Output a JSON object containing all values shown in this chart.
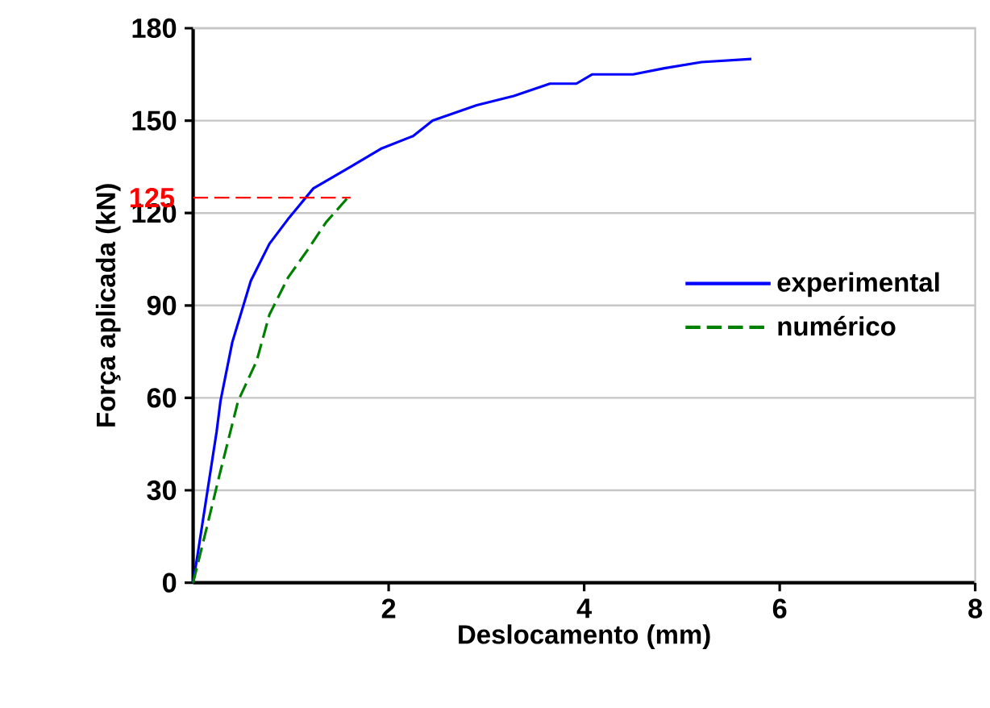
{
  "chart_data": {
    "type": "line",
    "xlabel": "Deslocamento (mm)",
    "ylabel": "Força aplicada (kN)",
    "xlim": [
      0,
      8
    ],
    "ylim": [
      0,
      180
    ],
    "xticks": [
      2,
      4,
      6,
      8
    ],
    "yticks": [
      0,
      30,
      60,
      90,
      120,
      150,
      180
    ],
    "grid": "y",
    "legend": "right",
    "series": [
      {
        "name": "experimental",
        "color": "#0000ff",
        "line_style": "solid",
        "x": [
          0,
          0.05,
          0.24,
          0.28,
          0.4,
          0.59,
          0.78,
          0.97,
          1.23,
          1.61,
          1.93,
          2.25,
          2.45,
          2.9,
          3.28,
          3.65,
          3.92,
          4.08,
          4.5,
          4.82,
          5.2,
          5.71
        ],
        "values": [
          0,
          10,
          49,
          59,
          78,
          98,
          110,
          118,
          128,
          135,
          141,
          145,
          150,
          155,
          158,
          162,
          162,
          165,
          165,
          167,
          169,
          170
        ]
      },
      {
        "name": "numérico",
        "color": "#008000",
        "line_style": "dashed",
        "x": [
          0,
          0.14,
          0.27,
          0.46,
          0.65,
          0.78,
          0.97,
          1.17,
          1.36,
          1.61
        ],
        "values": [
          0,
          18,
          35,
          59,
          72,
          87,
          99,
          108,
          117,
          126
        ]
      }
    ],
    "ref_lines": [
      {
        "axis": "y",
        "value": 125,
        "label": "125",
        "color": "#ff0000",
        "line_style": "dashed"
      }
    ]
  }
}
